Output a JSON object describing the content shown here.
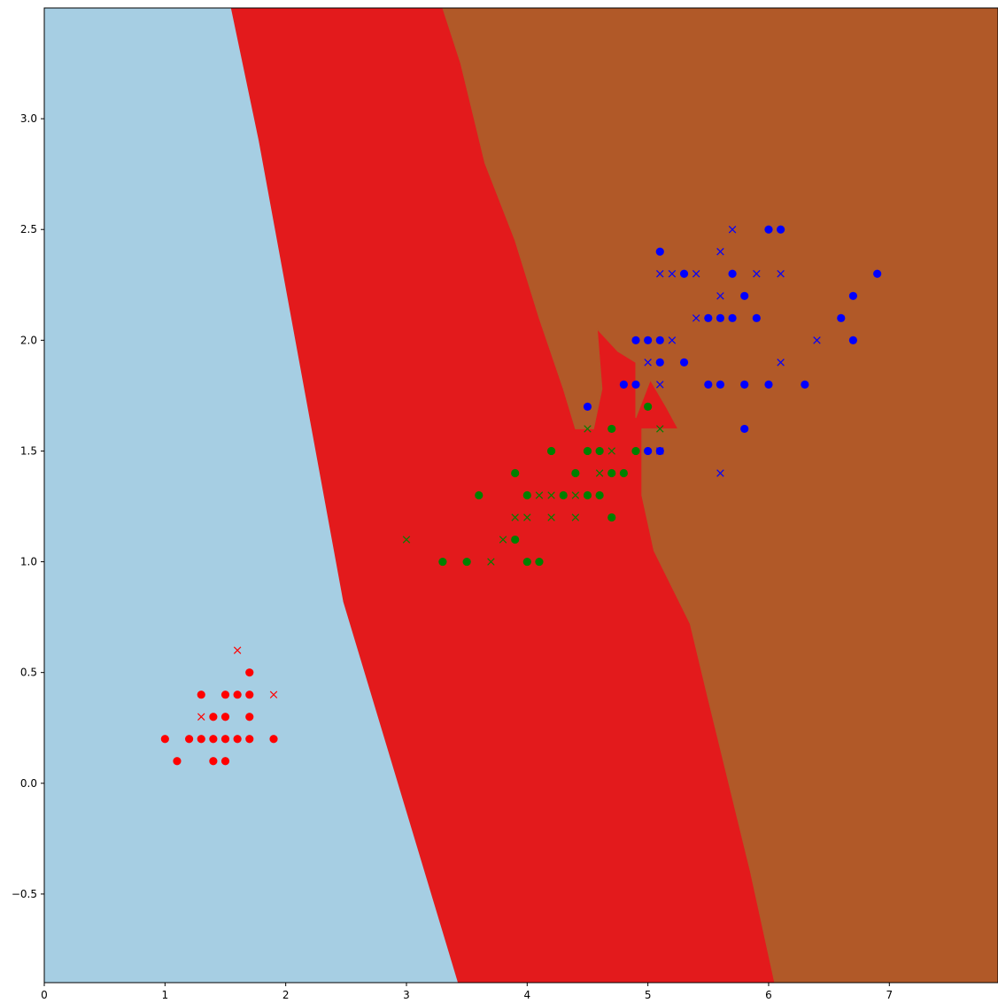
{
  "chart_data": {
    "type": "scatter",
    "title": "",
    "xlabel": "",
    "ylabel": "",
    "xlim": [
      0,
      7.9
    ],
    "ylim": [
      -0.9,
      3.5
    ],
    "xticks": [
      0,
      1,
      2,
      3,
      4,
      5,
      6,
      7
    ],
    "yticks": [
      -0.5,
      0.0,
      0.5,
      1.0,
      1.5,
      2.0,
      2.5,
      3.0
    ],
    "xtick_labels": [
      "0",
      "1",
      "2",
      "3",
      "4",
      "5",
      "6",
      "7"
    ],
    "ytick_labels": [
      "−0.5",
      "0.0",
      "0.5",
      "1.0",
      "1.5",
      "2.0",
      "2.5",
      "3.0"
    ],
    "grid": false,
    "legend": "none",
    "regions": [
      {
        "color": "#a6cee3",
        "polygon": [
          [
            0,
            3.5
          ],
          [
            1.55,
            3.5
          ],
          [
            1.78,
            2.9
          ],
          [
            2.48,
            0.82
          ],
          [
            3.43,
            -0.9
          ],
          [
            0,
            -0.9
          ]
        ]
      },
      {
        "color": "#e31a1c",
        "polygon": [
          [
            1.55,
            3.5
          ],
          [
            3.3,
            3.5
          ],
          [
            3.45,
            3.25
          ],
          [
            3.65,
            2.8
          ],
          [
            3.9,
            2.45
          ],
          [
            4.1,
            2.1
          ],
          [
            4.3,
            1.78
          ],
          [
            4.4,
            1.6
          ],
          [
            4.55,
            1.6
          ],
          [
            4.62,
            1.78
          ],
          [
            4.58,
            2.05
          ],
          [
            4.75,
            1.95
          ],
          [
            4.9,
            1.9
          ],
          [
            4.9,
            1.65
          ],
          [
            5.02,
            1.82
          ],
          [
            5.15,
            1.7
          ],
          [
            5.25,
            1.6
          ],
          [
            4.95,
            1.6
          ],
          [
            4.95,
            1.3
          ],
          [
            5.05,
            1.05
          ],
          [
            5.35,
            0.72
          ],
          [
            5.5,
            0.38
          ],
          [
            5.85,
            -0.4
          ],
          [
            6.05,
            -0.9
          ],
          [
            3.43,
            -0.9
          ],
          [
            2.48,
            0.82
          ],
          [
            1.78,
            2.9
          ]
        ]
      },
      {
        "color": "#b15928",
        "polygon": [
          [
            3.3,
            3.5
          ],
          [
            7.9,
            3.5
          ],
          [
            7.9,
            -0.9
          ],
          [
            6.05,
            -0.9
          ],
          [
            5.85,
            -0.4
          ],
          [
            5.5,
            0.38
          ],
          [
            5.35,
            0.72
          ],
          [
            5.05,
            1.05
          ],
          [
            4.95,
            1.3
          ],
          [
            4.95,
            1.6
          ],
          [
            5.25,
            1.6
          ],
          [
            5.15,
            1.7
          ],
          [
            5.02,
            1.82
          ],
          [
            4.9,
            1.65
          ],
          [
            4.9,
            1.9
          ],
          [
            4.75,
            1.95
          ],
          [
            4.58,
            2.05
          ],
          [
            4.62,
            1.78
          ],
          [
            4.55,
            1.6
          ],
          [
            4.4,
            1.6
          ],
          [
            4.3,
            1.78
          ],
          [
            4.1,
            2.1
          ],
          [
            3.9,
            2.45
          ],
          [
            3.65,
            2.8
          ],
          [
            3.45,
            3.25
          ]
        ]
      }
    ],
    "series": [
      {
        "color": "#ff0000",
        "marker": "o",
        "points": [
          [
            1.0,
            0.2
          ],
          [
            1.1,
            0.1
          ],
          [
            1.2,
            0.2
          ],
          [
            1.3,
            0.2
          ],
          [
            1.3,
            0.4
          ],
          [
            1.4,
            0.1
          ],
          [
            1.4,
            0.2
          ],
          [
            1.4,
            0.3
          ],
          [
            1.5,
            0.1
          ],
          [
            1.5,
            0.2
          ],
          [
            1.5,
            0.3
          ],
          [
            1.5,
            0.4
          ],
          [
            1.6,
            0.2
          ],
          [
            1.6,
            0.4
          ],
          [
            1.7,
            0.2
          ],
          [
            1.7,
            0.3
          ],
          [
            1.7,
            0.4
          ],
          [
            1.7,
            0.5
          ],
          [
            1.9,
            0.2
          ]
        ]
      },
      {
        "color": "#ff0000",
        "marker": "x",
        "points": [
          [
            1.3,
            0.3
          ],
          [
            1.6,
            0.6
          ],
          [
            1.9,
            0.4
          ]
        ]
      },
      {
        "color": "#008000",
        "marker": "o",
        "points": [
          [
            3.3,
            1.0
          ],
          [
            3.5,
            1.0
          ],
          [
            3.6,
            1.3
          ],
          [
            3.9,
            1.1
          ],
          [
            3.9,
            1.4
          ],
          [
            4.0,
            1.0
          ],
          [
            4.0,
            1.3
          ],
          [
            4.1,
            1.0
          ],
          [
            4.2,
            1.5
          ],
          [
            4.3,
            1.3
          ],
          [
            4.4,
            1.4
          ],
          [
            4.5,
            1.3
          ],
          [
            4.5,
            1.5
          ],
          [
            4.6,
            1.3
          ],
          [
            4.6,
            1.5
          ],
          [
            4.7,
            1.2
          ],
          [
            4.7,
            1.4
          ],
          [
            4.7,
            1.6
          ],
          [
            4.8,
            1.4
          ],
          [
            4.9,
            1.5
          ],
          [
            5.0,
            1.7
          ]
        ]
      },
      {
        "color": "#008000",
        "marker": "x",
        "points": [
          [
            3.0,
            1.1
          ],
          [
            3.7,
            1.0
          ],
          [
            3.8,
            1.1
          ],
          [
            3.9,
            1.2
          ],
          [
            4.0,
            1.2
          ],
          [
            4.1,
            1.3
          ],
          [
            4.2,
            1.2
          ],
          [
            4.2,
            1.3
          ],
          [
            4.4,
            1.2
          ],
          [
            4.4,
            1.3
          ],
          [
            4.5,
            1.6
          ],
          [
            4.6,
            1.4
          ],
          [
            4.7,
            1.5
          ],
          [
            5.1,
            1.6
          ]
        ]
      },
      {
        "color": "#0000ff",
        "marker": "o",
        "points": [
          [
            4.5,
            1.7
          ],
          [
            4.8,
            1.8
          ],
          [
            4.9,
            1.8
          ],
          [
            4.9,
            2.0
          ],
          [
            5.0,
            1.5
          ],
          [
            5.0,
            2.0
          ],
          [
            5.1,
            1.5
          ],
          [
            5.1,
            1.9
          ],
          [
            5.1,
            2.0
          ],
          [
            5.1,
            2.4
          ],
          [
            5.3,
            1.9
          ],
          [
            5.3,
            2.3
          ],
          [
            5.5,
            1.8
          ],
          [
            5.5,
            2.1
          ],
          [
            5.6,
            1.8
          ],
          [
            5.6,
            2.1
          ],
          [
            5.7,
            2.1
          ],
          [
            5.7,
            2.3
          ],
          [
            5.8,
            1.6
          ],
          [
            5.8,
            1.8
          ],
          [
            5.8,
            2.2
          ],
          [
            5.9,
            2.1
          ],
          [
            6.0,
            1.8
          ],
          [
            6.0,
            2.5
          ],
          [
            6.1,
            2.5
          ],
          [
            6.3,
            1.8
          ],
          [
            6.6,
            2.1
          ],
          [
            6.7,
            2.0
          ],
          [
            6.7,
            2.2
          ],
          [
            6.9,
            2.3
          ]
        ]
      },
      {
        "color": "#0000ff",
        "marker": "x",
        "points": [
          [
            5.0,
            1.9
          ],
          [
            5.1,
            1.5
          ],
          [
            5.1,
            1.8
          ],
          [
            5.1,
            2.3
          ],
          [
            5.2,
            2.0
          ],
          [
            5.2,
            2.3
          ],
          [
            5.4,
            2.1
          ],
          [
            5.4,
            2.3
          ],
          [
            5.6,
            1.4
          ],
          [
            5.6,
            2.2
          ],
          [
            5.6,
            2.4
          ],
          [
            5.7,
            2.5
          ],
          [
            5.9,
            2.3
          ],
          [
            6.1,
            1.9
          ],
          [
            6.1,
            2.3
          ],
          [
            6.4,
            2.0
          ]
        ]
      }
    ]
  }
}
